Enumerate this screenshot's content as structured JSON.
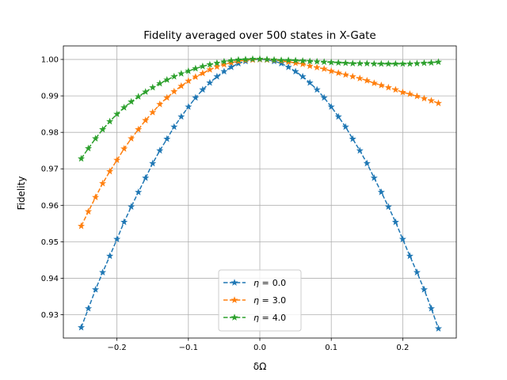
{
  "chart_data": {
    "type": "line",
    "title": "Fidelity averaged over 500 states in X-Gate",
    "xlabel": "δΩ",
    "ylabel": "Fidelity",
    "xlim": [
      -0.275,
      0.275
    ],
    "ylim": [
      0.9236,
      1.0037
    ],
    "xticks": [
      -0.2,
      -0.1,
      0.0,
      0.1,
      0.2
    ],
    "xtick_labels": [
      "−0.2",
      "−0.1",
      "0.0",
      "0.1",
      "0.2"
    ],
    "yticks": [
      0.93,
      0.94,
      0.95,
      0.96,
      0.97,
      0.98,
      0.99,
      1.0
    ],
    "ytick_labels": [
      "0.93",
      "0.94",
      "0.95",
      "0.96",
      "0.97",
      "0.98",
      "0.99",
      "1.00"
    ],
    "grid": true,
    "legend_position": "lower-center",
    "marker": "star",
    "line_style": "dashed",
    "x": [
      -0.25,
      -0.24,
      -0.23,
      -0.22,
      -0.21,
      -0.2,
      -0.19,
      -0.18,
      -0.17,
      -0.16,
      -0.15,
      -0.14,
      -0.13,
      -0.12,
      -0.11,
      -0.1,
      -0.09,
      -0.08,
      -0.07,
      -0.06,
      -0.05,
      -0.04,
      -0.03,
      -0.02,
      -0.01,
      0.0,
      0.01,
      0.02,
      0.03,
      0.04,
      0.05,
      0.06,
      0.07,
      0.08,
      0.09,
      0.1,
      0.11,
      0.12,
      0.13,
      0.14,
      0.15,
      0.16,
      0.17,
      0.18,
      0.19,
      0.2,
      0.21,
      0.22,
      0.23,
      0.24,
      0.25
    ],
    "series": [
      {
        "name": "η = 0.0",
        "legend_prefix": "η =",
        "legend_value": "0.0",
        "color": "#1f77b4",
        "values": [
          0.9265,
          0.9317,
          0.9369,
          0.9416,
          0.9461,
          0.9507,
          0.9554,
          0.9596,
          0.9636,
          0.9675,
          0.9715,
          0.975,
          0.9782,
          0.9815,
          0.9843,
          0.987,
          0.9895,
          0.9917,
          0.9936,
          0.9953,
          0.9967,
          0.9979,
          0.9989,
          0.9995,
          0.9999,
          1.0,
          0.9999,
          0.9995,
          0.9989,
          0.9979,
          0.9967,
          0.9953,
          0.9936,
          0.9917,
          0.9895,
          0.987,
          0.9843,
          0.9815,
          0.9782,
          0.975,
          0.9715,
          0.9675,
          0.9636,
          0.9596,
          0.9554,
          0.9507,
          0.9461,
          0.9416,
          0.9369,
          0.9317,
          0.9262
        ]
      },
      {
        "name": "η = 3.0",
        "legend_prefix": "η =",
        "legend_value": "3.0",
        "color": "#ff7f0e",
        "values": [
          0.9543,
          0.9583,
          0.9622,
          0.966,
          0.9693,
          0.9724,
          0.9755,
          0.9783,
          0.9808,
          0.9833,
          0.9855,
          0.9877,
          0.9895,
          0.9912,
          0.9927,
          0.9941,
          0.9952,
          0.9962,
          0.9972,
          0.998,
          0.9986,
          0.9991,
          0.9995,
          0.9998,
          0.9999,
          1.0,
          0.9999,
          0.9998,
          0.9996,
          0.9993,
          0.999,
          0.9987,
          0.9982,
          0.9978,
          0.9974,
          0.9968,
          0.9963,
          0.9958,
          0.9953,
          0.9948,
          0.9942,
          0.9935,
          0.9929,
          0.9923,
          0.9917,
          0.991,
          0.9905,
          0.9899,
          0.9893,
          0.9887,
          0.988
        ]
      },
      {
        "name": "η = 4.0",
        "legend_prefix": "η =",
        "legend_value": "4.0",
        "color": "#2ca02c",
        "values": [
          0.9728,
          0.9756,
          0.9783,
          0.9808,
          0.983,
          0.985,
          0.9868,
          0.9884,
          0.9898,
          0.9911,
          0.9923,
          0.9934,
          0.9944,
          0.9953,
          0.9961,
          0.9968,
          0.9975,
          0.9981,
          0.9986,
          0.999,
          0.9994,
          0.9997,
          0.9999,
          1.0,
          1.0001,
          1.0001,
          1.0,
          0.9999,
          0.9998,
          0.9998,
          0.9997,
          0.9996,
          0.9995,
          0.9994,
          0.9993,
          0.9992,
          0.9991,
          0.999,
          0.9989,
          0.9989,
          0.9989,
          0.9988,
          0.9988,
          0.9988,
          0.9988,
          0.9988,
          0.9988,
          0.9989,
          0.999,
          0.9991,
          0.9993
        ]
      }
    ]
  }
}
